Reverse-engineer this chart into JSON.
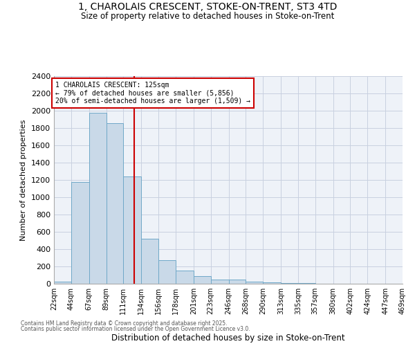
{
  "title_line1": "1, CHAROLAIS CRESCENT, STOKE-ON-TRENT, ST3 4TD",
  "title_line2": "Size of property relative to detached houses in Stoke-on-Trent",
  "xlabel": "Distribution of detached houses by size in Stoke-on-Trent",
  "ylabel": "Number of detached properties",
  "property_size": 125,
  "property_label": "1 CHAROLAIS CRESCENT: 125sqm",
  "pct_smaller": 79,
  "count_smaller": 5856,
  "pct_larger": 20,
  "count_larger": 1509,
  "bin_edges": [
    22,
    44,
    67,
    89,
    111,
    134,
    156,
    178,
    201,
    223,
    246,
    268,
    290,
    313,
    335,
    357,
    380,
    402,
    424,
    447,
    469
  ],
  "bin_labels": [
    "22sqm",
    "44sqm",
    "67sqm",
    "89sqm",
    "111sqm",
    "134sqm",
    "156sqm",
    "178sqm",
    "201sqm",
    "223sqm",
    "246sqm",
    "268sqm",
    "290sqm",
    "313sqm",
    "335sqm",
    "357sqm",
    "380sqm",
    "402sqm",
    "424sqm",
    "447sqm",
    "469sqm"
  ],
  "bar_heights": [
    25,
    1175,
    1975,
    1860,
    1240,
    520,
    275,
    155,
    90,
    45,
    45,
    22,
    18,
    8,
    5,
    3,
    3,
    3,
    2,
    2,
    0
  ],
  "bar_color": "#c9d9e8",
  "bar_edge_color": "#6fa8c8",
  "vline_x": 125,
  "vline_color": "#cc0000",
  "annotation_box_color": "#cc0000",
  "ylim": [
    0,
    2400
  ],
  "yticks": [
    0,
    200,
    400,
    600,
    800,
    1000,
    1200,
    1400,
    1600,
    1800,
    2000,
    2200,
    2400
  ],
  "grid_color": "#c8d0e0",
  "bg_color": "#eef2f8",
  "footnote_line1": "Contains HM Land Registry data © Crown copyright and database right 2025.",
  "footnote_line2": "Contains public sector information licensed under the Open Government Licence v3.0."
}
